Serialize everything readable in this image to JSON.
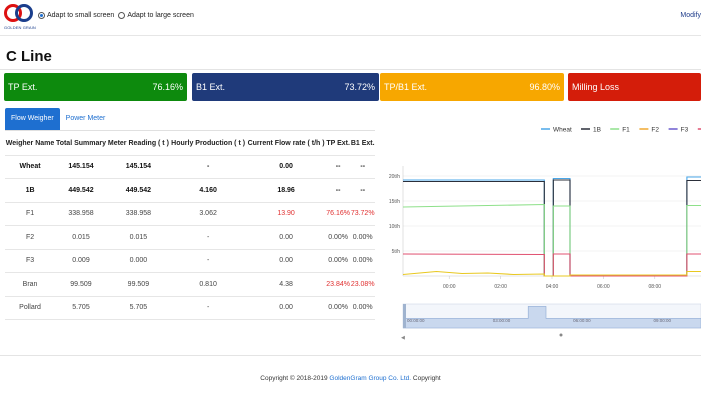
{
  "header": {
    "logo_text": "GOLDEN GRAIN",
    "radio_small": "Adapt to small screen",
    "radio_large": "Adapt to large screen",
    "modify_link": "Modify"
  },
  "page_title": "C Line",
  "kpis": [
    {
      "label": "TP Ext.",
      "value": "76.16%",
      "color": "#0d8a0d"
    },
    {
      "label": "B1 Ext.",
      "value": "73.72%",
      "color": "#1f3a7a"
    },
    {
      "label": "TP/B1 Ext.",
      "value": "96.80%",
      "color": "#f7a700"
    },
    {
      "label": "Milling Loss",
      "value": "",
      "color": "#d41d0a"
    }
  ],
  "tabs": [
    {
      "label": "Flow Weigher"
    },
    {
      "label": "Power Meter"
    }
  ],
  "table": {
    "headers": [
      "Weigher Name",
      "Total Summary",
      "Meter Reading ( t )",
      "Hourly Production ( t )",
      "Current Flow rate ( t/h )",
      "TP Ext.",
      "B1 Ext."
    ],
    "rows": [
      [
        "Wheat",
        "145.154",
        "145.154",
        "-",
        "0.00",
        "--",
        "--"
      ],
      [
        "1B",
        "449.542",
        "449.542",
        "4.160",
        "18.96",
        "--",
        "--"
      ],
      [
        "F1",
        "338.958",
        "338.958",
        "3.062",
        "13.90",
        "76.16%",
        "73.72%"
      ],
      [
        "F2",
        "0.015",
        "0.015",
        "-",
        "0.00",
        "0.00%",
        "0.00%"
      ],
      [
        "F3",
        "0.009",
        "0.000",
        "-",
        "0.00",
        "0.00%",
        "0.00%"
      ],
      [
        "Bran",
        "99.509",
        "99.509",
        "0.810",
        "4.38",
        "23.84%",
        "23.08%"
      ],
      [
        "Pollard",
        "5.705",
        "5.705",
        "-",
        "0.00",
        "0.00%",
        "0.00%"
      ]
    ]
  },
  "chart_data": {
    "type": "line",
    "legend": [
      "Wheat",
      "1B",
      "F1",
      "F2",
      "F3",
      "Bran",
      "Po"
    ],
    "colors": {
      "Wheat": "#4aa7e8",
      "1B": "#2b2f3a",
      "F1": "#8ee08a",
      "F2": "#f0a830",
      "F3": "#6a5acd",
      "Bran": "#e05070",
      "Pollard": "#e8c820"
    },
    "y_ticks": [
      "20t/h",
      "15t/h",
      "10t/h",
      "5t/h"
    ],
    "x_ticks": [
      "00:00",
      "02:00",
      "04:00",
      "06:00",
      "08:00"
    ],
    "zoom_ticks": [
      "00:00:00",
      "03:00:00",
      "06:00:00",
      "09:00:00"
    ],
    "ylim": [
      0,
      22
    ],
    "xlim_hours": [
      -1.8,
      9.8
    ],
    "series": [
      {
        "name": "Wheat",
        "x": [
          -1.8,
          3.7,
          3.7,
          4.05,
          4.05,
          4.7,
          4.7,
          9.25,
          9.25,
          9.8
        ],
        "y": [
          19.2,
          19.2,
          0,
          0,
          19.5,
          19.5,
          0,
          0,
          19.8,
          19.8
        ]
      },
      {
        "name": "1B",
        "x": [
          -1.8,
          3.7,
          3.7,
          4.05,
          4.05,
          4.7,
          4.7,
          9.25,
          9.25,
          9.8
        ],
        "y": [
          18.9,
          18.9,
          0,
          0,
          19.2,
          19.2,
          0,
          0,
          19.1,
          19.1
        ]
      },
      {
        "name": "F1",
        "x": [
          -1.8,
          3.7,
          3.7,
          4.05,
          4.05,
          4.7,
          4.7,
          9.25,
          9.25,
          9.8
        ],
        "y": [
          13.8,
          14.3,
          0,
          0,
          14.0,
          14.0,
          0,
          0,
          14.1,
          14.1
        ]
      },
      {
        "name": "Bran",
        "x": [
          -1.8,
          3.7,
          3.7,
          4.05,
          4.05,
          4.7,
          4.7,
          9.25,
          9.25,
          9.8
        ],
        "y": [
          4.4,
          4.3,
          0,
          0,
          4.4,
          4.4,
          0,
          0,
          4.4,
          4.4
        ]
      },
      {
        "name": "Pollard",
        "x": [
          -1.8,
          -0.5,
          0.5,
          1.5,
          2.5,
          3.7,
          3.7,
          4.7,
          4.7,
          9.25,
          9.25,
          9.8
        ],
        "y": [
          0.3,
          0.9,
          0.5,
          0.6,
          0.3,
          0.4,
          0,
          0,
          0.2,
          0.2,
          0.9,
          0.9
        ]
      }
    ]
  },
  "footer": {
    "prefix": "Copyright © 2018-2019 ",
    "link": "GoldenGram Group Co. Ltd.",
    "suffix": " Copyright"
  }
}
